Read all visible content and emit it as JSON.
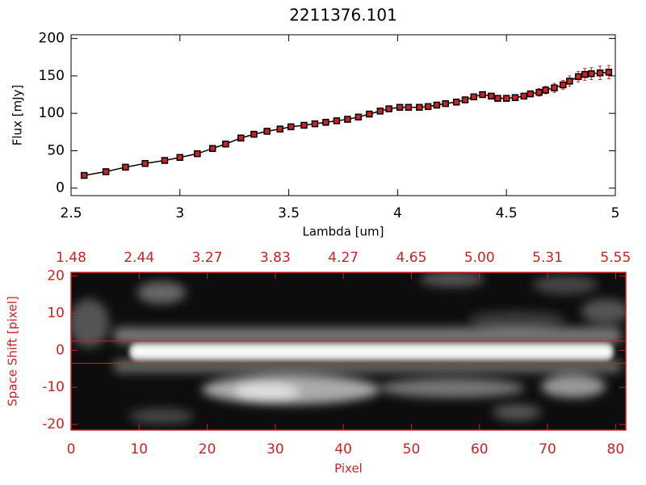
{
  "chart_data": [
    {
      "type": "line",
      "title": "2211376.101",
      "xlabel": "Lambda [um]",
      "ylabel": "Flux [mJy]",
      "x": [
        2.56,
        2.66,
        2.75,
        2.84,
        2.93,
        3.0,
        3.08,
        3.15,
        3.21,
        3.28,
        3.34,
        3.4,
        3.46,
        3.51,
        3.57,
        3.62,
        3.67,
        3.72,
        3.77,
        3.82,
        3.87,
        3.92,
        3.96,
        4.01,
        4.05,
        4.1,
        4.14,
        4.18,
        4.22,
        4.27,
        4.31,
        4.35,
        4.39,
        4.43,
        4.46,
        4.5,
        4.54,
        4.58,
        4.61,
        4.65,
        4.68,
        4.72,
        4.76,
        4.79,
        4.83,
        4.86,
        4.89,
        4.93,
        4.97
      ],
      "values": [
        17,
        22,
        28,
        33,
        37,
        41,
        46,
        53,
        59,
        67,
        72,
        76,
        79,
        82,
        84,
        86,
        88,
        90,
        92,
        95,
        99,
        103,
        106,
        108,
        108,
        108,
        109,
        111,
        113,
        115,
        118,
        122,
        125,
        123,
        120,
        120,
        121,
        123,
        126,
        128,
        131,
        134,
        138,
        143,
        149,
        152,
        153,
        154,
        155
      ],
      "errors": [
        2,
        2,
        2,
        2,
        2,
        2,
        3,
        4,
        4,
        3,
        2,
        2,
        2,
        2,
        2,
        2,
        2,
        2,
        2,
        2,
        2,
        2,
        2,
        2,
        2,
        2,
        2,
        2,
        2,
        2,
        2,
        2,
        2,
        2,
        2,
        2,
        2,
        3,
        4,
        5,
        5,
        6,
        6,
        7,
        7,
        8,
        8,
        9,
        9
      ],
      "color": "#000000",
      "marker_color": "#cc2222",
      "error_color": "#cc2222",
      "xlim": [
        2.5,
        5.0
      ],
      "xticks": [
        2.5,
        3.0,
        3.5,
        4.0,
        4.5,
        5.0
      ],
      "ylim": [
        -10,
        205
      ],
      "yticks": [
        0,
        50,
        100,
        150,
        200
      ]
    },
    {
      "type": "image",
      "xlabel": "Pixel",
      "ylabel": "Space Shift [pixel]",
      "color": "#cc2222",
      "xlim": [
        0,
        81.5
      ],
      "xticks": [
        0,
        10,
        20,
        30,
        40,
        50,
        60,
        70,
        80
      ],
      "x2ticks": [
        {
          "value": 0,
          "label": "1.48"
        },
        {
          "value": 10,
          "label": "2.44"
        },
        {
          "value": 20,
          "label": "3.27"
        },
        {
          "value": 30,
          "label": "3.83"
        },
        {
          "value": 40,
          "label": "4.27"
        },
        {
          "value": 50,
          "label": "4.65"
        },
        {
          "value": 60,
          "label": "5.00"
        },
        {
          "value": 70,
          "label": "5.31"
        },
        {
          "value": 80,
          "label": "5.55"
        }
      ],
      "ylim": [
        -21.5,
        21
      ],
      "yticks": [
        -20,
        -10,
        0,
        10,
        20
      ],
      "hlines": [
        2.5,
        -3.5
      ]
    }
  ]
}
